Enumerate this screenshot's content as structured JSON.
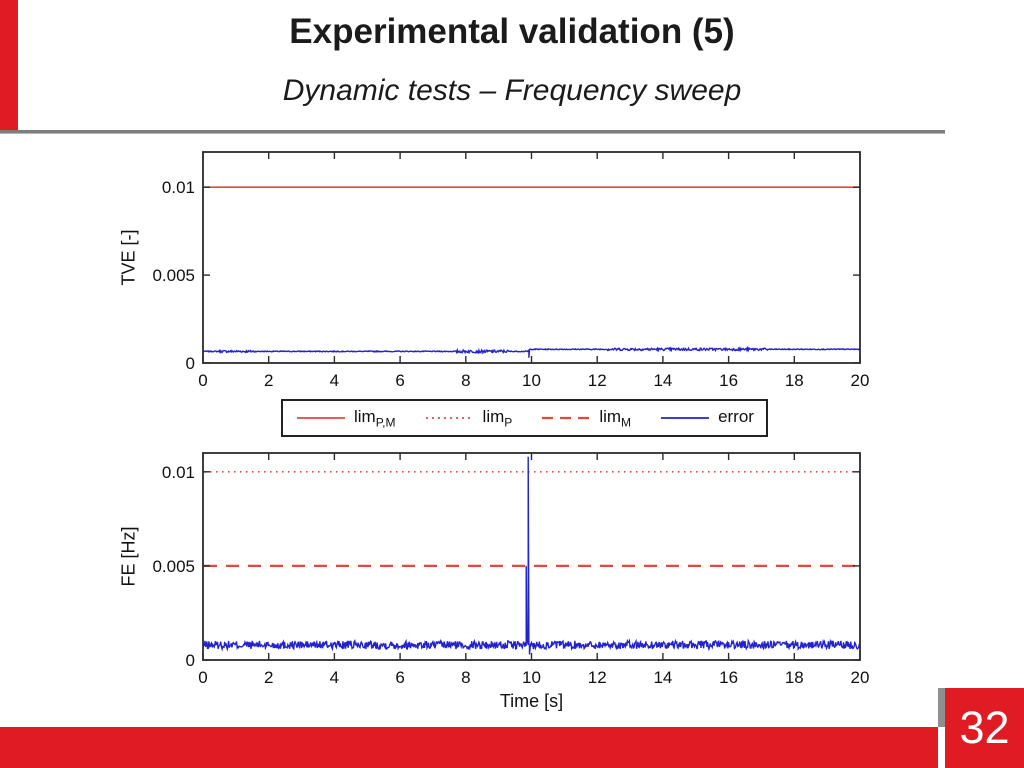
{
  "slide": {
    "title": "Experimental validation (5)",
    "subtitle": "Dynamic tests – Frequency sweep",
    "page_number": "32",
    "accent_color": "#e11b23"
  },
  "legend": {
    "items": [
      {
        "label": "lim",
        "sub": "P,M",
        "style": "solid",
        "color": "#e64540"
      },
      {
        "label": "lim",
        "sub": "P",
        "style": "dotted",
        "color": "#e64540"
      },
      {
        "label": "lim",
        "sub": "M",
        "style": "dashed",
        "color": "#e64540"
      },
      {
        "label": "error",
        "sub": "",
        "style": "solid",
        "color": "#2323cd"
      }
    ]
  },
  "chart_data": [
    {
      "type": "line",
      "title": "",
      "xlabel": "",
      "ylabel": "TVE [-]",
      "xlim": [
        0,
        20
      ],
      "ylim": [
        0,
        0.012
      ],
      "grid": false,
      "xticks": [
        0,
        2,
        4,
        6,
        8,
        10,
        12,
        14,
        16,
        18,
        20
      ],
      "yticks": [
        {
          "v": 0,
          "label": "0"
        },
        {
          "v": 0.005,
          "label": "0.005"
        },
        {
          "v": 0.01,
          "label": "0.01"
        }
      ],
      "series": [
        {
          "name": "lim_P,M",
          "type": "hline",
          "y": 0.01,
          "style": "solid",
          "color": "#e64540"
        },
        {
          "name": "error",
          "type": "noisy",
          "color": "#2323cd",
          "seed": 7,
          "baseline": [
            [
              0,
              0.00066
            ],
            [
              9.88,
              0.00066
            ],
            [
              9.96,
              0.00078
            ],
            [
              20,
              0.00078
            ]
          ],
          "noise_amp": 2.5e-05,
          "noise_zones": [
            {
              "range": [
                0.5,
                1.6
              ],
              "amp": 6e-05
            },
            {
              "range": [
                7.7,
                9.3
              ],
              "amp": 8e-05
            },
            {
              "range": [
                12.3,
                17.2
              ],
              "amp": 7e-05
            }
          ],
          "anomalies": [
            {
              "x": 9.92,
              "y": 0.0003
            }
          ]
        }
      ]
    },
    {
      "type": "line",
      "title": "",
      "xlabel": "Time [s]",
      "ylabel": "FE [Hz]",
      "xlim": [
        0,
        20
      ],
      "ylim": [
        0,
        0.011
      ],
      "grid": false,
      "xticks": [
        0,
        2,
        4,
        6,
        8,
        10,
        12,
        14,
        16,
        18,
        20
      ],
      "yticks": [
        {
          "v": 0,
          "label": "0"
        },
        {
          "v": 0.005,
          "label": "0.005"
        },
        {
          "v": 0.01,
          "label": "0.01"
        }
      ],
      "series": [
        {
          "name": "lim_P",
          "type": "hline",
          "y": 0.01,
          "style": "dotted",
          "color": "#e64540"
        },
        {
          "name": "lim_M",
          "type": "hline",
          "y": 0.005,
          "style": "dashed",
          "color": "#e64540"
        },
        {
          "name": "error",
          "type": "noisy",
          "color": "#2323cd",
          "seed": 13,
          "baseline": [
            [
              0,
              0.0008
            ],
            [
              20,
              0.0008
            ]
          ],
          "noise_amp": 0.00022,
          "noise_zones": [],
          "anomalies": [
            {
              "x": 9.84,
              "y": 0.005
            },
            {
              "x": 9.86,
              "y": 0.0009
            },
            {
              "x": 9.9,
              "y": 0.0108
            },
            {
              "x": 9.94,
              "y": 0.0003
            }
          ]
        }
      ]
    }
  ]
}
